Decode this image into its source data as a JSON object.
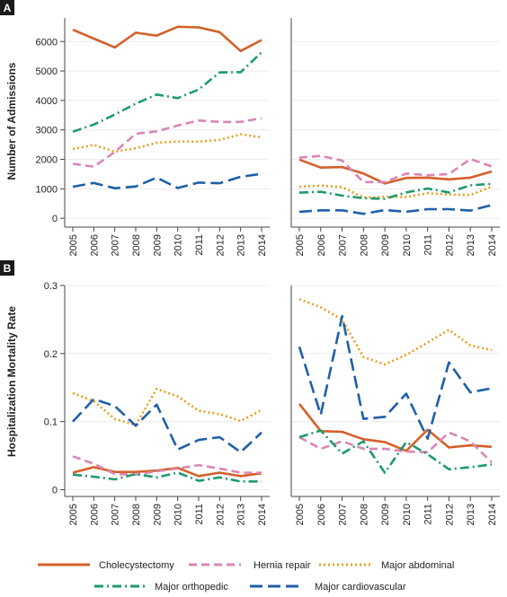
{
  "panel_labels": [
    "A",
    "B"
  ],
  "years": [
    "2005",
    "2006",
    "2007",
    "2008",
    "2009",
    "2010",
    "2011",
    "2012",
    "2013",
    "2014"
  ],
  "legend": [
    {
      "name": "Cholecystectomy",
      "color": "#d4602a",
      "dash": "solid"
    },
    {
      "name": "Hernia repair",
      "color": "#d986b5",
      "dash": "dash"
    },
    {
      "name": "Major abdominal",
      "color": "#e8a020",
      "dash": "dot"
    },
    {
      "name": "Major orthopedic",
      "color": "#1e9a6e",
      "dash": "dashdot"
    },
    {
      "name": "Major cardiovascular",
      "color": "#1f5fa8",
      "dash": "longdash"
    }
  ],
  "chart_data": [
    {
      "panel": "A",
      "position": "left",
      "type": "line",
      "ylabel": "Number of Admissions",
      "ylim": [
        -300,
        6800
      ],
      "yticks": [
        0,
        1000,
        2000,
        3000,
        4000,
        5000,
        6000
      ],
      "x": [
        "2005",
        "2006",
        "2007",
        "2008",
        "2009",
        "2010",
        "2011",
        "2012",
        "2013",
        "2014"
      ],
      "series": [
        {
          "name": "Cholecystectomy",
          "values": [
            6400,
            6100,
            5800,
            6300,
            6200,
            6500,
            6480,
            6320,
            5680,
            6050
          ]
        },
        {
          "name": "Hernia repair",
          "values": [
            1850,
            1750,
            2250,
            2870,
            2950,
            3150,
            3320,
            3270,
            3270,
            3400
          ]
        },
        {
          "name": "Major abdominal",
          "values": [
            2350,
            2490,
            2260,
            2380,
            2560,
            2610,
            2600,
            2660,
            2850,
            2750
          ]
        },
        {
          "name": "Major orthopedic",
          "values": [
            2940,
            3180,
            3520,
            3890,
            4200,
            4080,
            4370,
            4950,
            4960,
            5630
          ]
        },
        {
          "name": "Major cardiovascular",
          "values": [
            1070,
            1200,
            1020,
            1080,
            1380,
            1030,
            1210,
            1190,
            1410,
            1510
          ]
        }
      ]
    },
    {
      "panel": "A",
      "position": "right",
      "type": "line",
      "ylim": [
        -300,
        6800
      ],
      "x": [
        "2005",
        "2006",
        "2007",
        "2008",
        "2009",
        "2010",
        "2011",
        "2012",
        "2013",
        "2014"
      ],
      "series": [
        {
          "name": "Cholecystectomy",
          "values": [
            1990,
            1720,
            1740,
            1520,
            1180,
            1370,
            1380,
            1320,
            1380,
            1590
          ]
        },
        {
          "name": "Hernia repair",
          "values": [
            2060,
            2120,
            1960,
            1230,
            1230,
            1520,
            1460,
            1500,
            2010,
            1760
          ]
        },
        {
          "name": "Major abdominal",
          "values": [
            1070,
            1110,
            1060,
            710,
            730,
            720,
            850,
            810,
            790,
            1070
          ]
        },
        {
          "name": "Major orthopedic",
          "values": [
            870,
            900,
            770,
            680,
            660,
            880,
            1010,
            880,
            1120,
            1170
          ]
        },
        {
          "name": "Major cardiovascular",
          "values": [
            220,
            270,
            270,
            150,
            280,
            220,
            310,
            310,
            260,
            450
          ]
        }
      ]
    },
    {
      "panel": "B",
      "position": "left",
      "type": "line",
      "ylabel": "Hospitalization Mortality Rate",
      "ylim": [
        -0.01,
        0.3
      ],
      "yticks": [
        0,
        0.1,
        0.2,
        0.3
      ],
      "ytick_labels": [
        "0",
        "0.1",
        "0.2",
        "0.3"
      ],
      "x": [
        "2005",
        "2006",
        "2007",
        "2008",
        "2009",
        "2010",
        "2011",
        "2012",
        "2013",
        "2014"
      ],
      "series": [
        {
          "name": "Cholecystectomy",
          "values": [
            0.025,
            0.033,
            0.026,
            0.026,
            0.028,
            0.032,
            0.02,
            0.025,
            0.02,
            0.024
          ]
        },
        {
          "name": "Hernia repair",
          "values": [
            0.049,
            0.038,
            0.023,
            0.022,
            0.027,
            0.031,
            0.036,
            0.031,
            0.025,
            0.025
          ]
        },
        {
          "name": "Major abdominal",
          "values": [
            0.142,
            0.13,
            0.104,
            0.095,
            0.148,
            0.137,
            0.116,
            0.111,
            0.101,
            0.117
          ]
        },
        {
          "name": "Major orthopedic",
          "values": [
            0.022,
            0.019,
            0.015,
            0.023,
            0.018,
            0.025,
            0.013,
            0.018,
            0.012,
            0.012
          ]
        },
        {
          "name": "Major cardiovascular",
          "values": [
            0.1,
            0.133,
            0.123,
            0.094,
            0.125,
            0.059,
            0.073,
            0.077,
            0.055,
            0.084
          ]
        }
      ]
    },
    {
      "panel": "B",
      "position": "right",
      "type": "line",
      "ylim": [
        -0.01,
        0.3
      ],
      "x": [
        "2005",
        "2006",
        "2007",
        "2008",
        "2009",
        "2010",
        "2011",
        "2012",
        "2013",
        "2014"
      ],
      "series": [
        {
          "name": "Cholecystectomy",
          "values": [
            0.126,
            0.086,
            0.085,
            0.074,
            0.07,
            0.057,
            0.088,
            0.062,
            0.065,
            0.063
          ]
        },
        {
          "name": "Hernia repair",
          "values": [
            0.077,
            0.06,
            0.071,
            0.06,
            0.06,
            0.056,
            0.055,
            0.084,
            0.071,
            0.04
          ]
        },
        {
          "name": "Major abdominal",
          "values": [
            0.28,
            0.268,
            0.25,
            0.195,
            0.184,
            0.198,
            0.216,
            0.235,
            0.212,
            0.205
          ]
        },
        {
          "name": "Major orthopedic",
          "values": [
            0.077,
            0.087,
            0.053,
            0.071,
            0.025,
            0.07,
            0.052,
            0.03,
            0.033,
            0.037
          ]
        },
        {
          "name": "Major cardiovascular",
          "values": [
            0.21,
            0.11,
            0.255,
            0.104,
            0.107,
            0.141,
            0.075,
            0.187,
            0.143,
            0.149
          ]
        }
      ]
    }
  ]
}
